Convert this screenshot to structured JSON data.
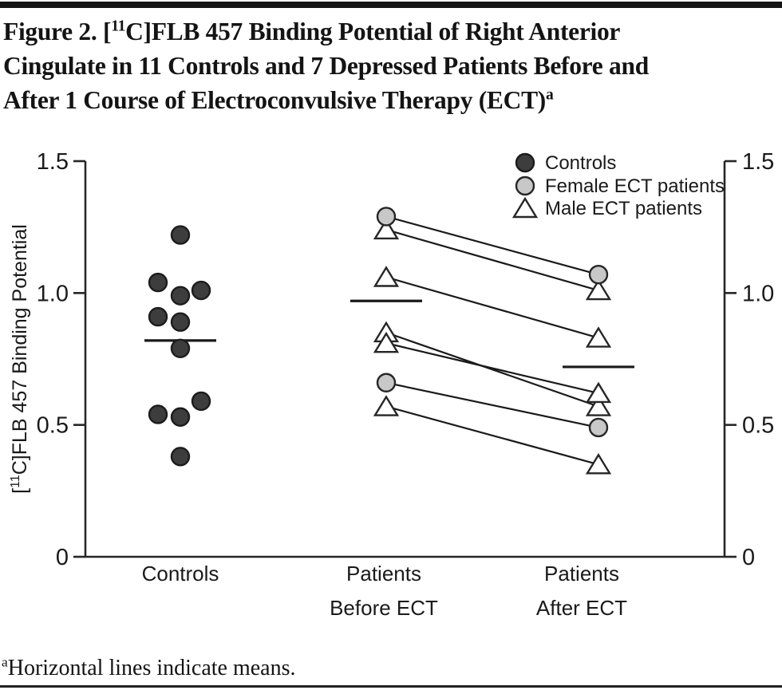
{
  "page": {
    "title": {
      "line1_pre": "Figure 2. [",
      "line1_sup": "11",
      "line1_post": "C]FLB 457 Binding Potential of Right Anterior",
      "line2": "Cingulate in 11 Controls and 7 Depressed Patients Before and",
      "line3_main": "After 1 Course of Electroconvulsive Therapy (ECT)",
      "line3_sup": "a"
    },
    "footnote": {
      "sup": "a",
      "text": "Horizontal lines indicate means."
    }
  },
  "chart_data": {
    "type": "scatter",
    "title": "Figure 2. [11C]FLB 457 Binding Potential of Right Anterior Cingulate in 11 Controls and 7 Depressed Patients Before and After 1 Course of Electroconvulsive Therapy (ECT)",
    "ylabel": "[11C]FLB 457 Binding Potential",
    "ylabel_segments": {
      "pre": "[",
      "sup": "11",
      "post": "C]FLB 457 Binding Potential"
    },
    "ylim": [
      0,
      1.5
    ],
    "yticks": [
      {
        "value": 0,
        "label": "0"
      },
      {
        "value": 0.5,
        "label": "0.5"
      },
      {
        "value": 1.0,
        "label": "1.0"
      },
      {
        "value": 1.5,
        "label": "1.5"
      }
    ],
    "grid": false,
    "legend_position": "top-right-inside",
    "legend": [
      {
        "marker": "circle-dark",
        "label": "Controls"
      },
      {
        "marker": "circle-light",
        "label": "Female ECT patients"
      },
      {
        "marker": "triangle-open",
        "label": "Male ECT patients"
      }
    ],
    "categories": [
      "Controls",
      "Patients Before ECT",
      "Patients After ECT"
    ],
    "category_labels": [
      [
        "Controls"
      ],
      [
        "Patients",
        "Before ECT"
      ],
      [
        "Patients",
        "After ECT"
      ]
    ],
    "controls": {
      "n": 11,
      "points": [
        {
          "value": 1.22,
          "dx": 0
        },
        {
          "value": 1.04,
          "dx": -28
        },
        {
          "value": 1.01,
          "dx": 26
        },
        {
          "value": 0.99,
          "dx": 0
        },
        {
          "value": 0.91,
          "dx": -28
        },
        {
          "value": 0.89,
          "dx": 0
        },
        {
          "value": 0.79,
          "dx": 0
        },
        {
          "value": 0.59,
          "dx": 26
        },
        {
          "value": 0.54,
          "dx": -28
        },
        {
          "value": 0.53,
          "dx": 0
        },
        {
          "value": 0.38,
          "dx": 0
        }
      ],
      "mean": 0.82
    },
    "patients": {
      "n": 7,
      "pairs": [
        {
          "sex": "female",
          "before": 1.29,
          "after": 1.07
        },
        {
          "sex": "male",
          "before": 1.24,
          "after": 1.01
        },
        {
          "sex": "male",
          "before": 1.06,
          "after": 0.83
        },
        {
          "sex": "male",
          "before": 0.85,
          "after": 0.57
        },
        {
          "sex": "male",
          "before": 0.81,
          "after": 0.62
        },
        {
          "sex": "female",
          "before": 0.66,
          "after": 0.49
        },
        {
          "sex": "male",
          "before": 0.57,
          "after": 0.35
        }
      ],
      "mean_before": 0.97,
      "mean_after": 0.72
    },
    "marker_styles": {
      "controls": {
        "shape": "circle",
        "fill": "#3d3d3d",
        "stroke": "#1c1c1c"
      },
      "female": {
        "shape": "circle",
        "fill": "#c8c8c8",
        "stroke": "#262626"
      },
      "male": {
        "shape": "triangle",
        "fill": "#ffffff",
        "stroke": "#262626"
      }
    },
    "line_color": "#1a1a1a",
    "axis_color": "#262626",
    "text_color": "#1a1a1a"
  }
}
